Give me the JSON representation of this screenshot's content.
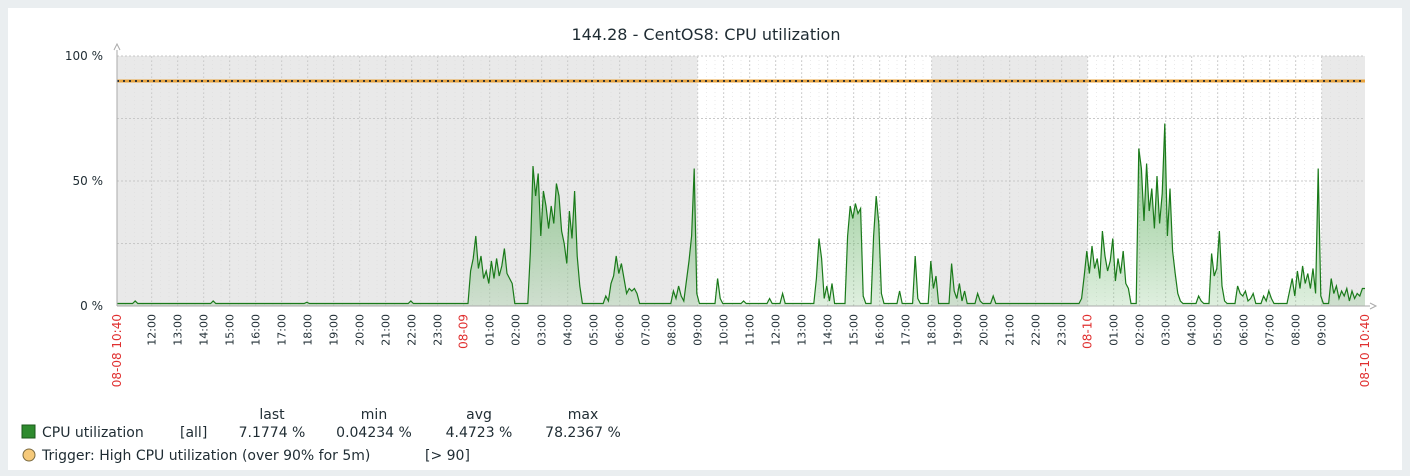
{
  "chart_data": {
    "type": "area",
    "title": "144.28 - CentOS8: CPU utilization",
    "ylim": [
      0,
      100
    ],
    "y_ticks": [
      "0 %",
      "50 %",
      "100 %"
    ],
    "x_ticks": {
      "start": "08-08 10:40",
      "end": "08-10 10:40",
      "hour_labels": [
        "12:00",
        "13:00",
        "14:00",
        "15:00",
        "16:00",
        "17:00",
        "18:00",
        "19:00",
        "20:00",
        "21:00",
        "22:00",
        "23:00",
        "08-09",
        "01:00",
        "02:00",
        "03:00",
        "04:00",
        "05:00",
        "06:00",
        "07:00",
        "08:00",
        "09:00",
        "10:00",
        "11:00",
        "12:00",
        "13:00",
        "14:00",
        "15:00",
        "16:00",
        "17:00",
        "18:00",
        "19:00",
        "20:00",
        "21:00",
        "22:00",
        "23:00",
        "08-10",
        "01:00",
        "02:00",
        "03:00",
        "04:00",
        "05:00",
        "06:00",
        "07:00",
        "08:00",
        "09:00"
      ]
    },
    "x_range_hours": [
      0,
      48
    ],
    "shaded_periods_hours": [
      [
        0,
        22.33
      ],
      [
        31.33,
        37.33
      ],
      [
        46.33,
        48
      ]
    ],
    "grid": true,
    "series": [
      {
        "name": "CPU utilization",
        "color": "#1a7a1a",
        "fill_color": "#7fbf7f",
        "points": [
          [
            0,
            1
          ],
          [
            0.6,
            1
          ],
          [
            0.7,
            2
          ],
          [
            0.8,
            1
          ],
          [
            3.6,
            1
          ],
          [
            3.7,
            2
          ],
          [
            3.8,
            1
          ],
          [
            7.2,
            1
          ],
          [
            7.3,
            1.5
          ],
          [
            7.4,
            1
          ],
          [
            11.2,
            1
          ],
          [
            11.3,
            2
          ],
          [
            11.4,
            1
          ],
          [
            13.5,
            1
          ],
          [
            13.6,
            14
          ],
          [
            13.7,
            19
          ],
          [
            13.8,
            28
          ],
          [
            13.9,
            15
          ],
          [
            14.0,
            20
          ],
          [
            14.1,
            11
          ],
          [
            14.2,
            14
          ],
          [
            14.3,
            9
          ],
          [
            14.4,
            18
          ],
          [
            14.5,
            11
          ],
          [
            14.6,
            19
          ],
          [
            14.7,
            12
          ],
          [
            14.8,
            16
          ],
          [
            14.9,
            23
          ],
          [
            15.0,
            13
          ],
          [
            15.1,
            11
          ],
          [
            15.2,
            9
          ],
          [
            15.3,
            1
          ],
          [
            15.8,
            1
          ],
          [
            15.9,
            22
          ],
          [
            16.0,
            56
          ],
          [
            16.1,
            44
          ],
          [
            16.2,
            53
          ],
          [
            16.3,
            28
          ],
          [
            16.4,
            46
          ],
          [
            16.5,
            40
          ],
          [
            16.6,
            31
          ],
          [
            16.7,
            40
          ],
          [
            16.8,
            33
          ],
          [
            16.9,
            49
          ],
          [
            17.0,
            44
          ],
          [
            17.1,
            30
          ],
          [
            17.2,
            25
          ],
          [
            17.3,
            17
          ],
          [
            17.4,
            38
          ],
          [
            17.5,
            27
          ],
          [
            17.6,
            46
          ],
          [
            17.7,
            20
          ],
          [
            17.8,
            8
          ],
          [
            17.9,
            1
          ],
          [
            18.7,
            1
          ],
          [
            18.8,
            4
          ],
          [
            18.9,
            2
          ],
          [
            19.0,
            9
          ],
          [
            19.1,
            12
          ],
          [
            19.2,
            20
          ],
          [
            19.3,
            13
          ],
          [
            19.4,
            17
          ],
          [
            19.5,
            11
          ],
          [
            19.6,
            5
          ],
          [
            19.7,
            7
          ],
          [
            19.8,
            6
          ],
          [
            19.9,
            7
          ],
          [
            20.0,
            5
          ],
          [
            20.1,
            1
          ],
          [
            21.3,
            1
          ],
          [
            21.4,
            6
          ],
          [
            21.5,
            3
          ],
          [
            21.6,
            8
          ],
          [
            21.7,
            4
          ],
          [
            21.8,
            2
          ],
          [
            21.9,
            10
          ],
          [
            22.0,
            18
          ],
          [
            22.1,
            28
          ],
          [
            22.2,
            55
          ],
          [
            22.3,
            5
          ],
          [
            22.4,
            1
          ],
          [
            23.0,
            1
          ],
          [
            23.1,
            11
          ],
          [
            23.2,
            3
          ],
          [
            23.3,
            1
          ],
          [
            24.0,
            1
          ],
          [
            24.1,
            2
          ],
          [
            24.2,
            1
          ],
          [
            25.0,
            1
          ],
          [
            25.1,
            3
          ],
          [
            25.2,
            1
          ],
          [
            25.5,
            1
          ],
          [
            25.6,
            5
          ],
          [
            25.7,
            1
          ],
          [
            26.8,
            1
          ],
          [
            26.9,
            11
          ],
          [
            27.0,
            27
          ],
          [
            27.1,
            19
          ],
          [
            27.2,
            3
          ],
          [
            27.3,
            8
          ],
          [
            27.4,
            2
          ],
          [
            27.5,
            9
          ],
          [
            27.6,
            1
          ],
          [
            28.0,
            1
          ],
          [
            28.1,
            28
          ],
          [
            28.2,
            40
          ],
          [
            28.3,
            35
          ],
          [
            28.4,
            41
          ],
          [
            28.5,
            37
          ],
          [
            28.6,
            39
          ],
          [
            28.7,
            4
          ],
          [
            28.8,
            1
          ],
          [
            29.0,
            1
          ],
          [
            29.1,
            28
          ],
          [
            29.2,
            44
          ],
          [
            29.3,
            33
          ],
          [
            29.4,
            5
          ],
          [
            29.5,
            1
          ],
          [
            30.0,
            1
          ],
          [
            30.1,
            6
          ],
          [
            30.2,
            1
          ],
          [
            30.6,
            1
          ],
          [
            30.7,
            20
          ],
          [
            30.8,
            3
          ],
          [
            30.9,
            1
          ],
          [
            31.2,
            1
          ],
          [
            31.3,
            18
          ],
          [
            31.4,
            7
          ],
          [
            31.5,
            12
          ],
          [
            31.6,
            1
          ],
          [
            32.0,
            1
          ],
          [
            32.1,
            17
          ],
          [
            32.2,
            6
          ],
          [
            32.3,
            3
          ],
          [
            32.4,
            9
          ],
          [
            32.5,
            2
          ],
          [
            32.6,
            6
          ],
          [
            32.7,
            1
          ],
          [
            33.0,
            1
          ],
          [
            33.1,
            5
          ],
          [
            33.2,
            2
          ],
          [
            33.3,
            1
          ],
          [
            33.6,
            1
          ],
          [
            33.7,
            4
          ],
          [
            33.8,
            1
          ],
          [
            37.0,
            1
          ],
          [
            37.1,
            3
          ],
          [
            37.2,
            12
          ],
          [
            37.3,
            22
          ],
          [
            37.4,
            13
          ],
          [
            37.5,
            24
          ],
          [
            37.6,
            15
          ],
          [
            37.7,
            19
          ],
          [
            37.8,
            11
          ],
          [
            37.9,
            30
          ],
          [
            38.0,
            20
          ],
          [
            38.1,
            14
          ],
          [
            38.2,
            18
          ],
          [
            38.3,
            27
          ],
          [
            38.4,
            10
          ],
          [
            38.5,
            19
          ],
          [
            38.6,
            13
          ],
          [
            38.7,
            22
          ],
          [
            38.8,
            9
          ],
          [
            38.9,
            7
          ],
          [
            39.0,
            1
          ],
          [
            39.2,
            1
          ],
          [
            39.3,
            63
          ],
          [
            39.4,
            55
          ],
          [
            39.5,
            34
          ],
          [
            39.6,
            57
          ],
          [
            39.7,
            38
          ],
          [
            39.8,
            47
          ],
          [
            39.9,
            31
          ],
          [
            40.0,
            52
          ],
          [
            40.1,
            33
          ],
          [
            40.2,
            45
          ],
          [
            40.3,
            73
          ],
          [
            40.4,
            28
          ],
          [
            40.5,
            47
          ],
          [
            40.6,
            22
          ],
          [
            40.7,
            13
          ],
          [
            40.8,
            5
          ],
          [
            40.9,
            2
          ],
          [
            41.0,
            1
          ],
          [
            41.5,
            1
          ],
          [
            41.6,
            4
          ],
          [
            41.7,
            2
          ],
          [
            41.8,
            1
          ],
          [
            42.0,
            1
          ],
          [
            42.1,
            21
          ],
          [
            42.2,
            12
          ],
          [
            42.3,
            15
          ],
          [
            42.4,
            30
          ],
          [
            42.5,
            8
          ],
          [
            42.6,
            2
          ],
          [
            42.7,
            1
          ],
          [
            43.0,
            1
          ],
          [
            43.1,
            8
          ],
          [
            43.2,
            5
          ],
          [
            43.3,
            4
          ],
          [
            43.4,
            6
          ],
          [
            43.5,
            2
          ],
          [
            43.6,
            3
          ],
          [
            43.7,
            5
          ],
          [
            43.8,
            1
          ],
          [
            44.0,
            1
          ],
          [
            44.1,
            4
          ],
          [
            44.2,
            2
          ],
          [
            44.3,
            6
          ],
          [
            44.4,
            3
          ],
          [
            44.5,
            1
          ],
          [
            45.0,
            1
          ],
          [
            45.1,
            6
          ],
          [
            45.2,
            11
          ],
          [
            45.3,
            4
          ],
          [
            45.4,
            14
          ],
          [
            45.5,
            7
          ],
          [
            45.6,
            16
          ],
          [
            45.7,
            9
          ],
          [
            45.8,
            13
          ],
          [
            45.9,
            7
          ],
          [
            46.0,
            15
          ],
          [
            46.1,
            5
          ],
          [
            46.2,
            55
          ],
          [
            46.3,
            4
          ],
          [
            46.4,
            1
          ],
          [
            46.6,
            1
          ],
          [
            46.7,
            11
          ],
          [
            46.8,
            5
          ],
          [
            46.9,
            8
          ],
          [
            47.0,
            3
          ],
          [
            47.1,
            6
          ],
          [
            47.2,
            4
          ],
          [
            47.3,
            7
          ],
          [
            47.4,
            2
          ],
          [
            47.5,
            6
          ],
          [
            47.6,
            3
          ],
          [
            47.7,
            5
          ],
          [
            47.8,
            4
          ],
          [
            47.9,
            7
          ],
          [
            48.0,
            7
          ]
        ]
      }
    ],
    "threshold": {
      "value": 90,
      "color": "#e8a33d",
      "line_color": "#333333"
    }
  },
  "legend": {
    "headers": {
      "last": "last",
      "min": "min",
      "avg": "avg",
      "max": "max"
    },
    "series_name": "CPU utilization",
    "series_func": "[all]",
    "last": "7.1774 %",
    "min": "0.04234 %",
    "avg": "4.4723 %",
    "max": "78.2367 %",
    "series_color": "#2e8b2e",
    "trigger_label": "Trigger: High CPU utilization (over 90% for 5m)",
    "trigger_cond": "[> 90]",
    "trigger_color": "#f5c97a"
  }
}
